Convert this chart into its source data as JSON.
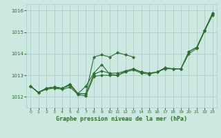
{
  "title": "Graphe pression niveau de la mer (hPa)",
  "background_color": "#cce8e0",
  "grid_color": "#aacccc",
  "line_color": "#2d6e2d",
  "xlim": [
    -0.5,
    23.5
  ],
  "ylim": [
    1011.5,
    1016.3
  ],
  "yticks": [
    1012,
    1013,
    1014,
    1015,
    1016
  ],
  "xticks": [
    0,
    1,
    2,
    3,
    4,
    5,
    6,
    7,
    8,
    9,
    10,
    11,
    12,
    13,
    14,
    15,
    16,
    17,
    18,
    19,
    20,
    21,
    22,
    23
  ],
  "series": [
    [
      0,
      1012.5,
      1,
      1012.2,
      2,
      1012.4,
      3,
      1012.45,
      4,
      1012.4,
      5,
      1012.6,
      6,
      1012.15,
      7,
      1012.15,
      8,
      1013.05,
      9,
      1013.2,
      10,
      1013.1,
      11,
      1013.1,
      12,
      1013.2,
      13,
      1013.3,
      14,
      1013.15,
      15,
      1013.1,
      16,
      1013.15,
      17,
      1013.35,
      18,
      1013.3,
      19,
      1013.3,
      20,
      1014.1,
      21,
      1014.3,
      22,
      1015.1,
      23,
      1015.9
    ],
    [
      0,
      1012.5,
      1,
      1012.2,
      2,
      1012.4,
      3,
      1012.45,
      4,
      1012.4,
      5,
      1012.55,
      6,
      1012.15,
      7,
      1012.15,
      8,
      1013.85,
      9,
      1013.95,
      10,
      1013.85,
      11,
      1014.05,
      12,
      1013.95,
      13,
      1013.85
    ],
    [
      0,
      1012.5,
      1,
      1012.2,
      2,
      1012.4,
      3,
      1012.45,
      4,
      1012.4,
      5,
      1012.55,
      6,
      1012.15,
      7,
      1012.5,
      8,
      1013.1,
      9,
      1013.5,
      10,
      1013.05,
      11,
      1013.0,
      12,
      1013.2,
      13,
      1013.3,
      14,
      1013.15,
      15,
      1013.1,
      16,
      1013.15,
      17,
      1013.35,
      18,
      1013.3,
      19,
      1013.3,
      20,
      1014.1,
      21,
      1014.3,
      22,
      1015.1,
      23,
      1015.85
    ],
    [
      0,
      1012.5,
      1,
      1012.2,
      2,
      1012.35,
      3,
      1012.4,
      4,
      1012.35,
      5,
      1012.45,
      6,
      1012.1,
      7,
      1012.05,
      8,
      1012.95,
      9,
      1013.0,
      10,
      1013.0,
      11,
      1013.0,
      12,
      1013.15,
      13,
      1013.25,
      14,
      1013.1,
      15,
      1013.05,
      16,
      1013.15,
      17,
      1013.3,
      18,
      1013.3,
      19,
      1013.3,
      20,
      1014.0,
      21,
      1014.25,
      22,
      1015.05,
      23,
      1015.8
    ]
  ]
}
